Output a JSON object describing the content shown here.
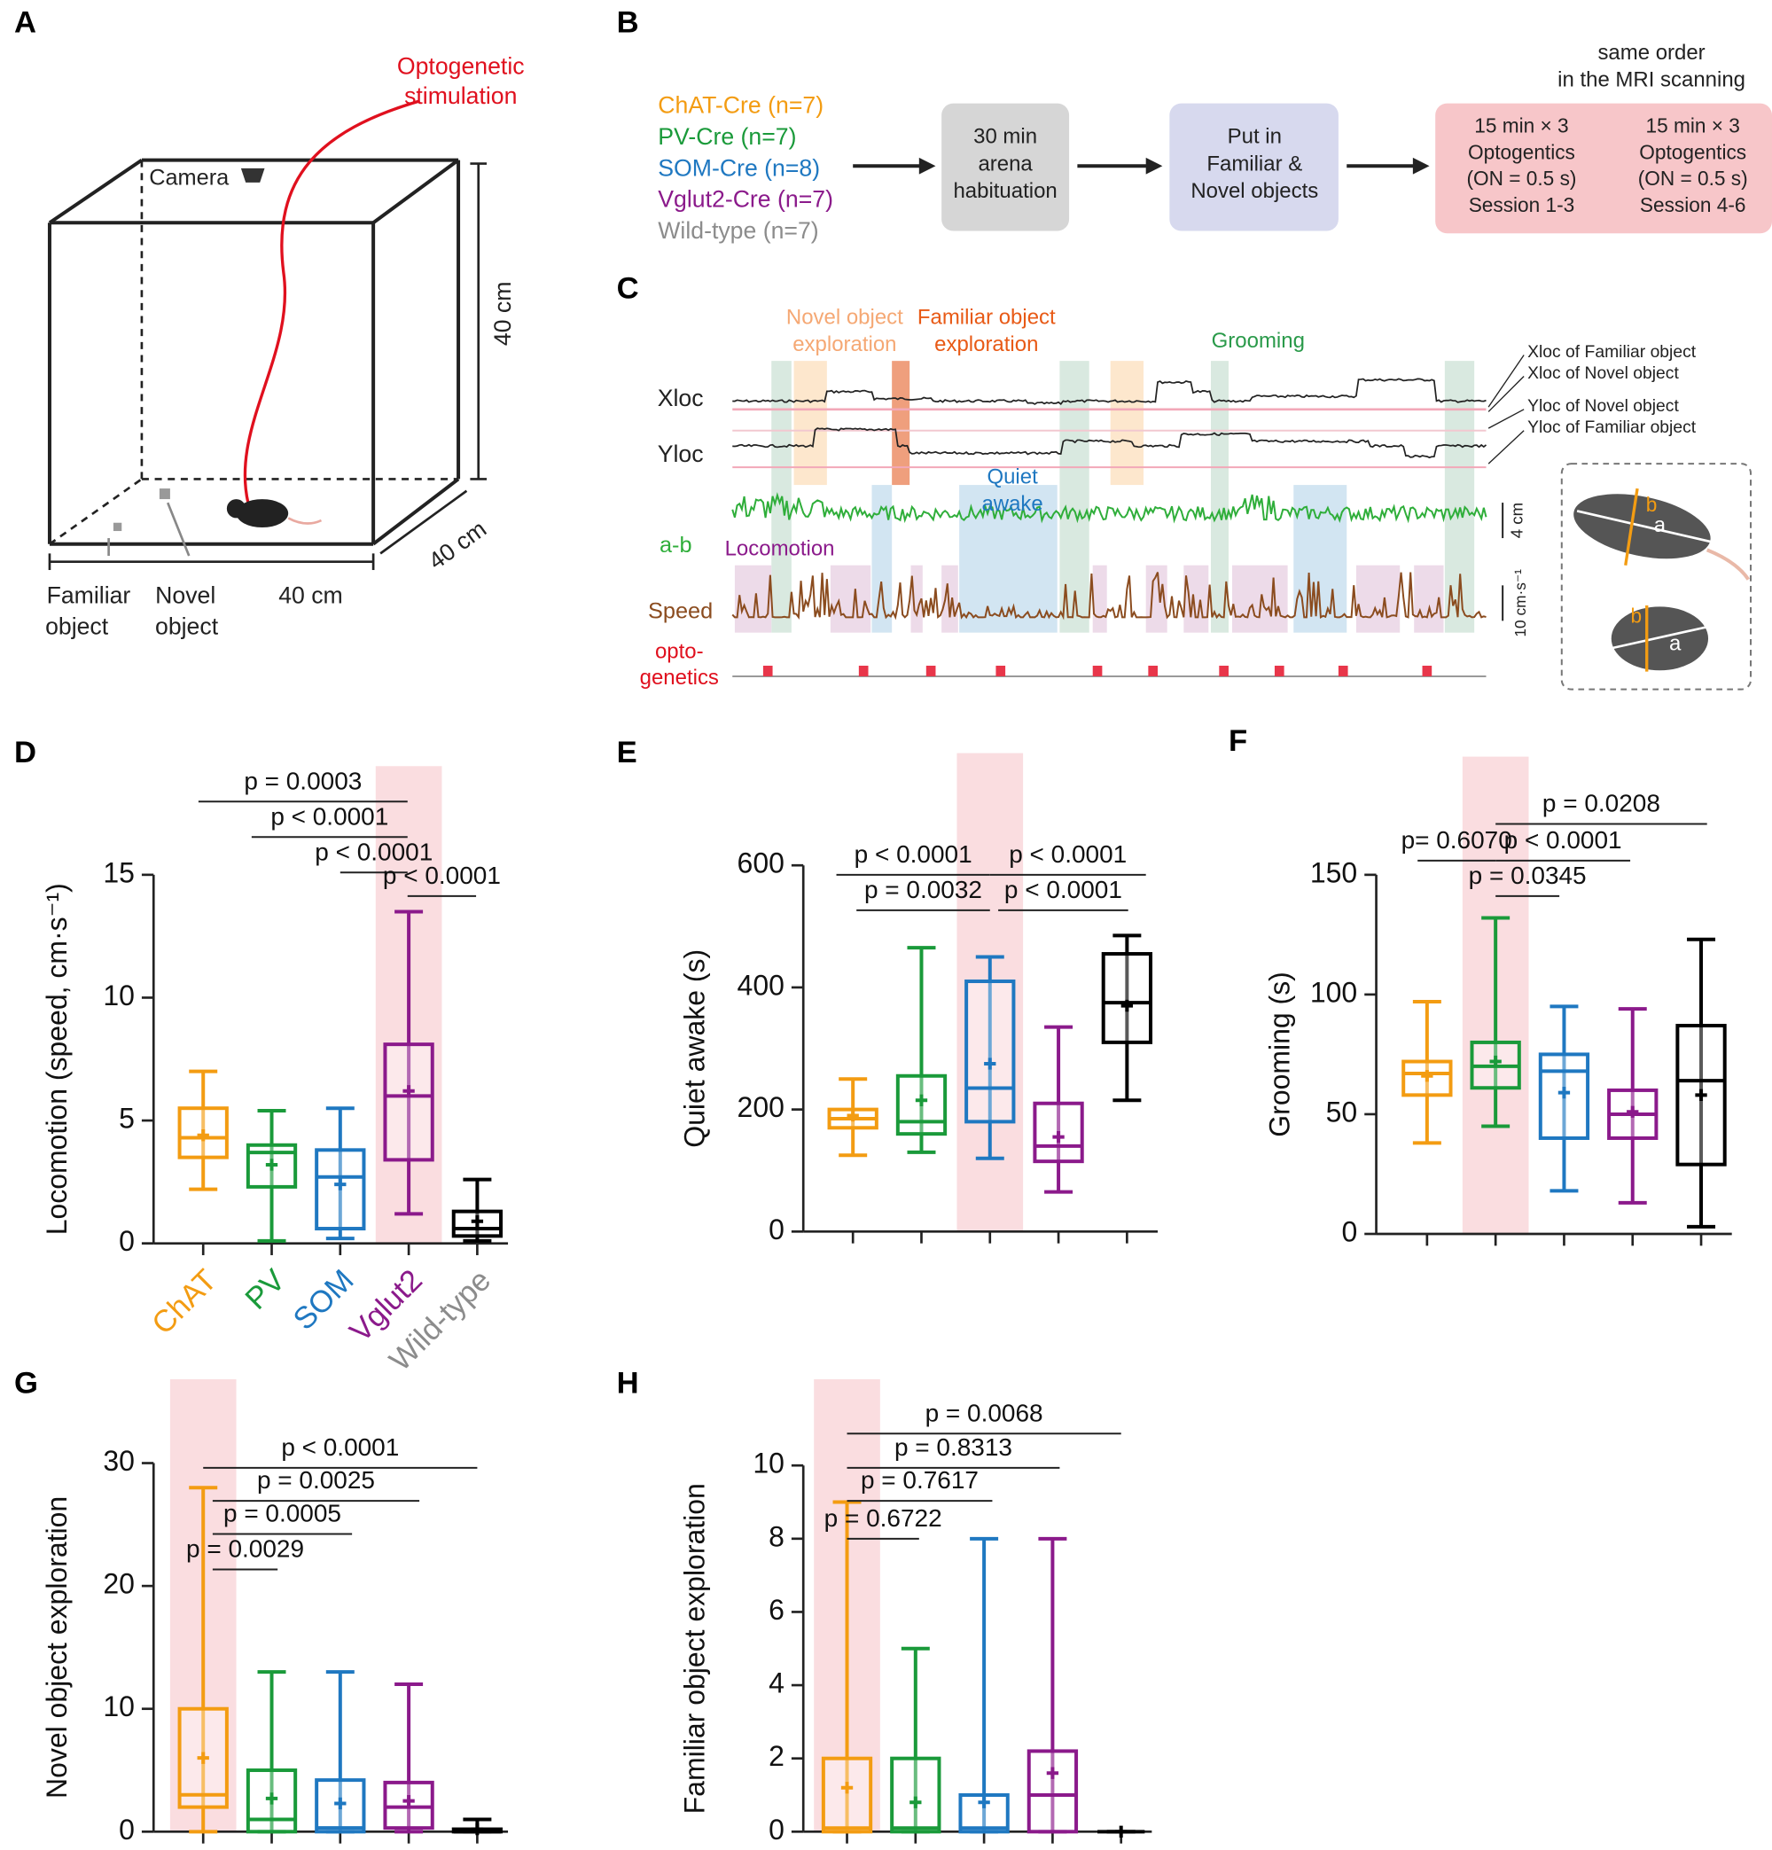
{
  "panel_labels": [
    "A",
    "B",
    "C",
    "D",
    "E",
    "F",
    "G",
    "H"
  ],
  "panel_a": {
    "stimulation": [
      "Optogenetic",
      "stimulation"
    ],
    "camera": "Camera",
    "height": "40 cm",
    "depth": "40 cm",
    "width": "40 cm",
    "familiar": [
      "Familiar",
      "object"
    ],
    "novel": [
      "Novel",
      "object"
    ]
  },
  "panel_b": {
    "note": [
      "same order",
      "in the MRI scanning"
    ],
    "groups": [
      {
        "name": "ChAT-Cre (n=7)",
        "color": "#f39c12"
      },
      {
        "name": "PV-Cre (n=7)",
        "color": "#1a9a3a"
      },
      {
        "name": "SOM-Cre (n=8)",
        "color": "#1f78c1"
      },
      {
        "name": "Vglut2-Cre (n=7)",
        "color": "#8b1a8b"
      },
      {
        "name": "Wild-type (n=7)",
        "color": "#8c8c8c"
      }
    ],
    "steps": [
      [
        "30 min",
        "arena",
        "habituation"
      ],
      [
        "Put in",
        "Familiar &",
        "Novel objects"
      ]
    ],
    "sessions": [
      [
        "15 min × 3",
        "Optogentics",
        "(ON = 0.5 s)",
        "Session 1-3"
      ],
      [
        "15 min × 3",
        "Optogentics",
        "(ON = 0.5 s)",
        "Session 4-6"
      ]
    ]
  },
  "panel_c": {
    "novel": [
      "Novel object",
      "exploration"
    ],
    "familiar": [
      "Familiar object",
      "exploration"
    ],
    "grooming": "Grooming",
    "quiet": [
      "Quiet",
      "awake"
    ],
    "locomotion": "Locomotion",
    "traces": [
      "Xloc",
      "Yloc",
      "a-b",
      "Speed"
    ],
    "opto": [
      "opto-",
      "genetics"
    ],
    "refs": [
      "Xloc of Familiar object",
      "Xloc of Novel object",
      "Yloc of Novel object",
      "Yloc of Familiar object"
    ],
    "scales": [
      "4 cm",
      "10 cm·s⁻¹"
    ],
    "axes": [
      "a",
      "b"
    ]
  },
  "chart_data": [
    {
      "type": "box",
      "ylabel": "Locomotion (speed, cm·s⁻¹)",
      "categories": [
        "ChAT",
        "PV",
        "SOM",
        "Vglut2",
        "Wild-type"
      ],
      "colors": [
        "#f39c12",
        "#1a9a3a",
        "#1f78c1",
        "#8b1a8b",
        "#000000"
      ],
      "label_colors": [
        "#f39c12",
        "#1a9a3a",
        "#1f78c1",
        "#8b1a8b",
        "#8c8c8c"
      ],
      "ylim": [
        0,
        15
      ],
      "yticks": [
        0,
        5,
        10,
        15
      ],
      "boxes": [
        {
          "min": 2.2,
          "q1": 3.5,
          "median": 4.3,
          "q3": 5.5,
          "max": 7,
          "mean": 4.4
        },
        {
          "min": 0.1,
          "q1": 2.3,
          "median": 3.7,
          "q3": 4.0,
          "max": 5.4,
          "mean": 3.2
        },
        {
          "min": 0.2,
          "q1": 0.6,
          "median": 2.7,
          "q3": 3.8,
          "max": 5.5,
          "mean": 2.4
        },
        {
          "min": 1.2,
          "q1": 3.4,
          "median": 6.0,
          "q3": 8.1,
          "max": 13.5,
          "mean": 6.2
        },
        {
          "min": 0.1,
          "q1": 0.3,
          "median": 0.6,
          "q3": 1.3,
          "max": 2.6,
          "mean": 0.9
        }
      ],
      "comparisons": [
        "p = 0.0003",
        "p < 0.0001",
        "p < 0.0001",
        "p < 0.0001"
      ]
    },
    {
      "type": "box",
      "ylabel": "Quiet awake (s)",
      "categories": [
        null,
        null,
        null,
        null,
        null
      ],
      "colors": [
        "#f39c12",
        "#1a9a3a",
        "#1f78c1",
        "#8b1a8b",
        "#000000"
      ],
      "ylim": [
        0,
        600
      ],
      "yticks": [
        0,
        200,
        400,
        600
      ],
      "boxes": [
        {
          "min": 125,
          "q1": 170,
          "median": 185,
          "q3": 200,
          "max": 250,
          "mean": 190
        },
        {
          "min": 130,
          "q1": 160,
          "median": 180,
          "q3": 255,
          "max": 465,
          "mean": 215
        },
        {
          "min": 120,
          "q1": 180,
          "median": 235,
          "q3": 410,
          "max": 450,
          "mean": 275
        },
        {
          "min": 65,
          "q1": 115,
          "median": 140,
          "q3": 210,
          "max": 335,
          "mean": 155
        },
        {
          "min": 215,
          "q1": 310,
          "median": 375,
          "q3": 455,
          "max": 485,
          "mean": 370
        }
      ],
      "comparisons": [
        "p < 0.0001",
        "p = 0.0032",
        "p < 0.0001",
        "p < 0.0001"
      ]
    },
    {
      "type": "box",
      "ylabel": "Grooming (s)",
      "categories": [
        null,
        null,
        null,
        null,
        null
      ],
      "colors": [
        "#f39c12",
        "#1a9a3a",
        "#1f78c1",
        "#8b1a8b",
        "#000000"
      ],
      "ylim": [
        0,
        150
      ],
      "yticks": [
        0,
        50,
        100,
        150
      ],
      "boxes": [
        {
          "min": 38,
          "q1": 58,
          "median": 67,
          "q3": 72,
          "max": 97,
          "mean": 66
        },
        {
          "min": 45,
          "q1": 61,
          "median": 70,
          "q3": 80,
          "max": 132,
          "mean": 72
        },
        {
          "min": 18,
          "q1": 40,
          "median": 68,
          "q3": 75,
          "max": 95,
          "mean": 59
        },
        {
          "min": 13,
          "q1": 40,
          "median": 50,
          "q3": 60,
          "max": 94,
          "mean": 51
        },
        {
          "min": 3,
          "q1": 29,
          "median": 64,
          "q3": 87,
          "max": 123,
          "mean": 58
        }
      ],
      "comparisons": [
        "p= 0.6070",
        "p = 0.0208",
        "p < 0.0001",
        "p = 0.0345"
      ]
    },
    {
      "type": "box",
      "ylabel": "Novel object exploration",
      "categories": [
        null,
        null,
        null,
        null,
        null
      ],
      "colors": [
        "#f39c12",
        "#1a9a3a",
        "#1f78c1",
        "#8b1a8b",
        "#000000"
      ],
      "ylim": [
        0,
        30
      ],
      "yticks": [
        0,
        10,
        20,
        30
      ],
      "boxes": [
        {
          "min": 0,
          "q1": 2,
          "median": 3,
          "q3": 10,
          "max": 28,
          "mean": 6
        },
        {
          "min": 0,
          "q1": 0,
          "median": 1,
          "q3": 5,
          "max": 13,
          "mean": 2.7
        },
        {
          "min": 0,
          "q1": 0,
          "median": 0.3,
          "q3": 4.2,
          "max": 13,
          "mean": 2.3
        },
        {
          "min": 0,
          "q1": 0.3,
          "median": 2,
          "q3": 4,
          "max": 12,
          "mean": 2.5
        },
        {
          "min": 0,
          "q1": 0,
          "median": 0,
          "q3": 0.2,
          "max": 1,
          "mean": 0.2
        }
      ],
      "comparisons": [
        "p < 0.0001",
        "p = 0.0025",
        "p = 0.0005",
        "p = 0.0029"
      ]
    },
    {
      "type": "box",
      "ylabel": "Familiar  object exploration",
      "categories": [
        null,
        null,
        null,
        null,
        null
      ],
      "colors": [
        "#f39c12",
        "#1a9a3a",
        "#1f78c1",
        "#8b1a8b",
        "#000000"
      ],
      "ylim": [
        0,
        10
      ],
      "yticks": [
        0,
        2,
        4,
        6,
        8,
        10
      ],
      "boxes": [
        {
          "min": 0,
          "q1": 0,
          "median": 0.1,
          "q3": 2,
          "max": 9,
          "mean": 1.2
        },
        {
          "min": 0,
          "q1": 0,
          "median": 0.1,
          "q3": 2,
          "max": 5,
          "mean": 0.8
        },
        {
          "min": 0,
          "q1": 0,
          "median": 0.1,
          "q3": 1,
          "max": 8,
          "mean": 0.8
        },
        {
          "min": 0,
          "q1": 0,
          "median": 1,
          "q3": 2.2,
          "max": 8,
          "mean": 1.6
        },
        {
          "min": 0,
          "q1": 0,
          "median": 0,
          "q3": 0,
          "max": 0,
          "mean": 0
        }
      ],
      "comparisons": [
        "p = 0.0068",
        "p = 0.8313",
        "p = 0.7617",
        "p = 0.6722"
      ]
    }
  ]
}
